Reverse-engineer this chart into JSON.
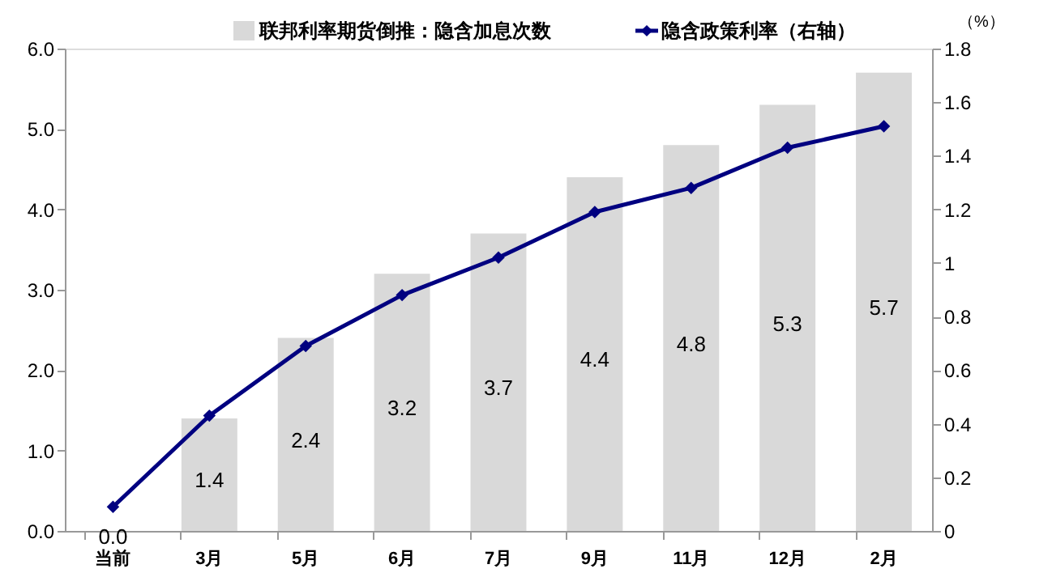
{
  "chart_data": {
    "type": "bar",
    "categories": [
      "当前",
      "3月",
      "5月",
      "6月",
      "7月",
      "9月",
      "11月",
      "12月",
      "2月"
    ],
    "series": [
      {
        "name": "联邦利率期货倒推：隐含加息次数",
        "color": "#d9d9d9",
        "values": [
          0.0,
          1.4,
          2.4,
          3.2,
          3.7,
          4.4,
          4.8,
          5.3,
          5.7
        ],
        "value_labels": [
          "0.0",
          "1.4",
          "2.4",
          "3.2",
          "3.7",
          "4.4",
          "4.8",
          "5.3",
          "5.7"
        ]
      },
      {
        "name": "隐含政策利率（右轴）",
        "type": "line",
        "axis": "y2",
        "color": "#000080",
        "values": [
          0.09,
          0.43,
          0.69,
          0.88,
          1.02,
          1.19,
          1.28,
          1.43,
          1.51
        ]
      }
    ],
    "ylim": [
      0,
      6
    ],
    "yticks": [
      {
        "value": 0,
        "label": "0.0"
      },
      {
        "value": 1,
        "label": "1.0"
      },
      {
        "value": 2,
        "label": "2.0"
      },
      {
        "value": 3,
        "label": "3.0"
      },
      {
        "value": 4,
        "label": "4.0"
      },
      {
        "value": 5,
        "label": "5.0"
      },
      {
        "value": 6,
        "label": "6.0"
      }
    ],
    "y2label": "（%）",
    "y2lim": [
      0,
      1.8
    ],
    "y2ticks": [
      0,
      0.2,
      0.4,
      0.6,
      0.8,
      1,
      1.2,
      1.4,
      1.6,
      1.8
    ],
    "marker": "diamond",
    "line_style": "solid",
    "grid": false,
    "legend": "top"
  }
}
